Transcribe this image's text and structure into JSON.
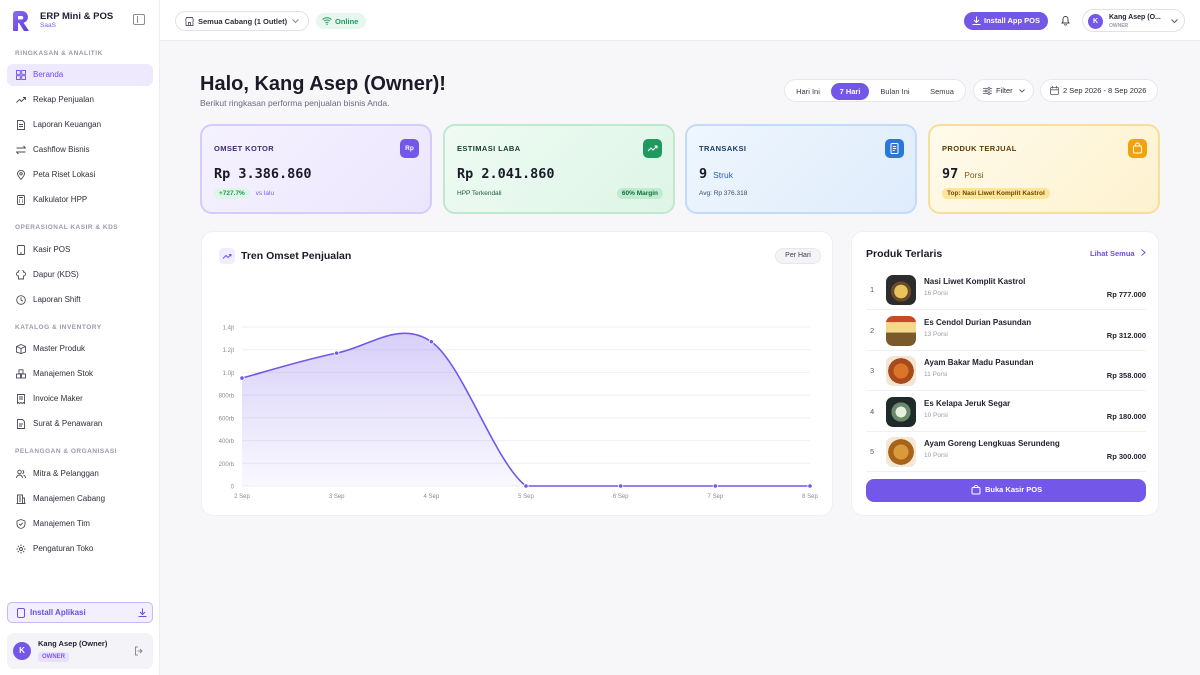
{
  "brand": {
    "name": "ERP Mini & POS",
    "sub": "SaaS"
  },
  "sidebar": {
    "sections": [
      {
        "label": "RINGKASAN & ANALITIK",
        "items": [
          {
            "label": "Beranda",
            "icon": "grid-icon",
            "active": true
          },
          {
            "label": "Rekap Penjualan",
            "icon": "trend-icon"
          },
          {
            "label": "Laporan Keuangan",
            "icon": "document-icon"
          },
          {
            "label": "Cashflow Bisnis",
            "icon": "swap-icon"
          },
          {
            "label": "Peta Riset Lokasi",
            "icon": "map-pin-icon"
          },
          {
            "label": "Kalkulator HPP",
            "icon": "calculator-icon"
          }
        ]
      },
      {
        "label": "OPERASIONAL KASIR & KDS",
        "items": [
          {
            "label": "Kasir POS",
            "icon": "tablet-icon"
          },
          {
            "label": "Dapur (KDS)",
            "icon": "chef-hat-icon"
          },
          {
            "label": "Laporan Shift",
            "icon": "clock-icon"
          }
        ]
      },
      {
        "label": "KATALOG & INVENTORY",
        "items": [
          {
            "label": "Master Produk",
            "icon": "box-icon"
          },
          {
            "label": "Manajemen Stok",
            "icon": "boxes-icon"
          },
          {
            "label": "Invoice Maker",
            "icon": "invoice-icon"
          },
          {
            "label": "Surat & Penawaran",
            "icon": "letter-icon"
          }
        ]
      },
      {
        "label": "PELANGGAN & ORGANISASI",
        "items": [
          {
            "label": "Mitra & Pelanggan",
            "icon": "users-icon"
          },
          {
            "label": "Manajemen Cabang",
            "icon": "building-icon"
          },
          {
            "label": "Manajemen Tim",
            "icon": "shield-icon"
          },
          {
            "label": "Pengaturan Toko",
            "icon": "gear-icon"
          }
        ]
      }
    ],
    "install_label": "Install Aplikasi",
    "user": {
      "initial": "K",
      "name": "Kang Asep (Owner)",
      "role": "OWNER"
    }
  },
  "topbar": {
    "branch": "Semua Cabang (1 Outlet)",
    "status": "Online",
    "install_pos": "Install App POS",
    "profile": {
      "initial": "K",
      "name": "Kang Asep (O...",
      "role": "OWNER"
    }
  },
  "header": {
    "greeting": "Halo, Kang Asep (Owner)!",
    "subtitle": "Berikut ringkasan performa penjualan bisnis Anda.",
    "periods": [
      "Hari Ini",
      "7 Hari",
      "Bulan Ini",
      "Semua"
    ],
    "active_period": "7 Hari",
    "filter": "Filter",
    "date_range": "2 Sep 2026 - 8 Sep 2026"
  },
  "kpis": [
    {
      "title": "OMSET KOTOR",
      "icon_text": "Rp",
      "value": "Rp 3.386.860",
      "unit": "",
      "foot_badge": "+727.7%",
      "foot_text": "vs lalu",
      "accent": "#7357e8"
    },
    {
      "title": "ESTIMASI LABA",
      "icon_text": "",
      "value": "Rp 2.041.860",
      "unit": "",
      "foot_text": "HPP Terkendali",
      "foot_badge": "60% Margin",
      "accent": "#1e9a5e"
    },
    {
      "title": "TRANSAKSI",
      "icon_text": "",
      "value": "9",
      "unit": "Struk",
      "foot_text": "Avg: Rp 376.318",
      "accent": "#2b77d6"
    },
    {
      "title": "PRODUK TERJUAL",
      "icon_text": "",
      "value": "97",
      "unit": "Porsi",
      "foot_badge": "Top: Nasi Liwet Komplit Kastrol",
      "accent": "#f0a30a"
    }
  ],
  "chart_card": {
    "title": "Tren Omset Penjualan",
    "granularity": "Per Hari"
  },
  "chart_data": {
    "type": "area",
    "title": "Tren Omset Penjualan",
    "x": [
      "2 Sep",
      "3 Sep",
      "4 Sep",
      "5 Sep",
      "6 Sep",
      "7 Sep",
      "8 Sep"
    ],
    "values": [
      950000,
      1170000,
      1270000,
      0,
      0,
      0,
      0
    ],
    "yticks": [
      "0",
      "200rb",
      "400rb",
      "600rb",
      "800rb",
      "1.0jt",
      "1.2jt",
      "1.4jt"
    ],
    "ylim": [
      0,
      1400000
    ],
    "grid": true,
    "color": "#7357e8"
  },
  "top_products": {
    "title": "Produk Terlaris",
    "see_all": "Lihat Semua",
    "items": [
      {
        "rank": "1",
        "name": "Nasi Liwet Komplit Kastrol",
        "qty": "16 Porsi",
        "price": "Rp 777.000"
      },
      {
        "rank": "2",
        "name": "Es Cendol Durian Pasundan",
        "qty": "13 Porsi",
        "price": "Rp 312.000"
      },
      {
        "rank": "3",
        "name": "Ayam Bakar Madu Pasundan",
        "qty": "11 Porsi",
        "price": "Rp 358.000"
      },
      {
        "rank": "4",
        "name": "Es Kelapa Jeruk Segar",
        "qty": "10 Porsi",
        "price": "Rp 180.000"
      },
      {
        "rank": "5",
        "name": "Ayam Goreng Lengkuas Serundeng",
        "qty": "10 Porsi",
        "price": "Rp 300.000"
      }
    ],
    "cta": "Buka Kasir POS"
  }
}
